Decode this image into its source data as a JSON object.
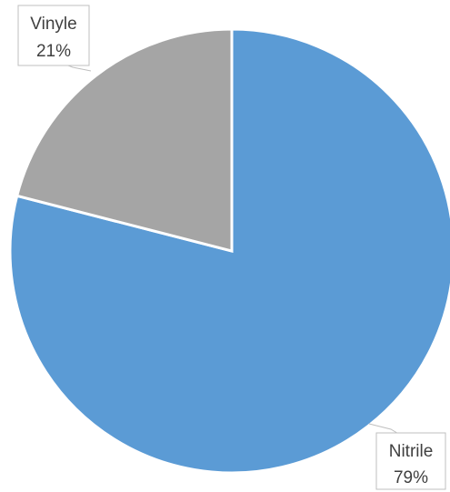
{
  "chart_data": {
    "type": "pie",
    "title": "",
    "slices": [
      {
        "label": "Vinyle",
        "value": 21,
        "display": "21%",
        "color": "#a5a5a5"
      },
      {
        "label": "Nitrile",
        "value": 79,
        "display": "79%",
        "color": "#5b9bd5"
      }
    ],
    "legend": "none"
  }
}
